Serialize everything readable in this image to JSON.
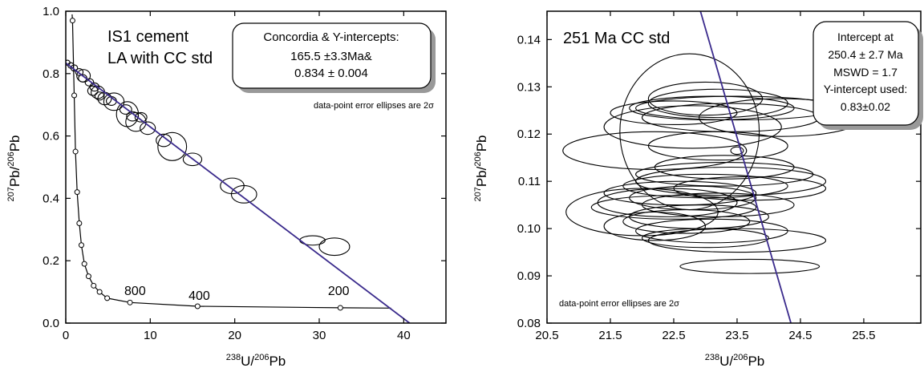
{
  "colors": {
    "axis": "#000000",
    "regression_line": "#3a2a8c",
    "ellipse": "#000000"
  },
  "chart_data": [
    {
      "type": "scatter",
      "subtype": "tera-wasserburg-concordia",
      "title_lines": [
        "IS1 cement",
        "LA with CC std"
      ],
      "xlabel": {
        "sup1": "238",
        "t1": "U/",
        "sup2": "206",
        "t2": "Pb"
      },
      "ylabel": {
        "sup1": "207",
        "t1": "Pb/",
        "sup2": "206",
        "t2": "Pb"
      },
      "xlim": [
        0,
        45
      ],
      "ylim": [
        0,
        1.0
      ],
      "x_ticks": [
        "0",
        "10",
        "20",
        "30",
        "40"
      ],
      "x_tick_values": [
        0,
        10,
        20,
        30,
        40
      ],
      "y_ticks": [
        "0.0",
        "0.2",
        "0.4",
        "0.6",
        "0.8",
        "1.0"
      ],
      "y_tick_values": [
        0,
        0.2,
        0.4,
        0.6,
        0.8,
        1.0
      ],
      "result_box": [
        "Concordia & Y-intercepts:",
        "165.5 ±3.3Ma&",
        "0.834 ± 0.004"
      ],
      "note": "data-point error ellipses are 2σ",
      "regression_line": {
        "x": [
          0,
          40.7
        ],
        "y": [
          0.834,
          0.0
        ]
      },
      "concordia_curve": {
        "x": [
          0.75,
          0.8,
          1.0,
          1.15,
          1.35,
          1.6,
          1.85,
          2.2,
          2.7,
          3.3,
          4.0,
          4.9,
          7.6,
          15.6,
          32.5,
          38.5
        ],
        "y": [
          0.99,
          0.97,
          0.73,
          0.55,
          0.42,
          0.32,
          0.25,
          0.19,
          0.15,
          0.12,
          0.1,
          0.08,
          0.066,
          0.054,
          0.049,
          0.048
        ]
      },
      "concordia_markers": {
        "x": [
          0.8,
          1.0,
          1.15,
          1.35,
          1.6,
          1.85,
          2.2,
          2.7,
          3.3,
          4.0,
          4.9,
          7.6,
          15.6,
          32.5
        ],
        "y": [
          0.97,
          0.73,
          0.55,
          0.42,
          0.32,
          0.25,
          0.19,
          0.15,
          0.12,
          0.1,
          0.08,
          0.066,
          0.054,
          0.049
        ]
      },
      "age_labels": [
        {
          "text": "800",
          "x": 8.2,
          "y": 0.09
        },
        {
          "text": "400",
          "x": 15.8,
          "y": 0.075
        },
        {
          "text": "200",
          "x": 32.3,
          "y": 0.09
        }
      ],
      "data_points": [
        {
          "x": 0.2,
          "y": 0.835,
          "ex": 0.3,
          "ey": 0.008
        },
        {
          "x": 0.6,
          "y": 0.826,
          "ex": 0.35,
          "ey": 0.009
        },
        {
          "x": 1.0,
          "y": 0.818,
          "ex": 0.4,
          "ey": 0.01
        },
        {
          "x": 1.6,
          "y": 0.805,
          "ex": 0.45,
          "ey": 0.011
        },
        {
          "x": 2.1,
          "y": 0.793,
          "ex": 0.8,
          "ey": 0.02
        },
        {
          "x": 2.0,
          "y": 0.785,
          "ex": 0.5,
          "ey": 0.012
        },
        {
          "x": 2.8,
          "y": 0.772,
          "ex": 0.5,
          "ey": 0.012
        },
        {
          "x": 3.4,
          "y": 0.757,
          "ex": 0.55,
          "ey": 0.013
        },
        {
          "x": 3.2,
          "y": 0.745,
          "ex": 0.6,
          "ey": 0.015
        },
        {
          "x": 3.8,
          "y": 0.74,
          "ex": 0.8,
          "ey": 0.02
        },
        {
          "x": 4.0,
          "y": 0.728,
          "ex": 0.55,
          "ey": 0.013
        },
        {
          "x": 4.6,
          "y": 0.72,
          "ex": 0.8,
          "ey": 0.02
        },
        {
          "x": 5.4,
          "y": 0.712,
          "ex": 0.6,
          "ey": 0.014
        },
        {
          "x": 5.7,
          "y": 0.71,
          "ex": 1.2,
          "ey": 0.028
        },
        {
          "x": 7.1,
          "y": 0.685,
          "ex": 0.7,
          "ey": 0.015
        },
        {
          "x": 7.3,
          "y": 0.67,
          "ex": 1.3,
          "ey": 0.04
        },
        {
          "x": 7.9,
          "y": 0.663,
          "ex": 0.7,
          "ey": 0.015
        },
        {
          "x": 8.3,
          "y": 0.645,
          "ex": 1.2,
          "ey": 0.03
        },
        {
          "x": 8.9,
          "y": 0.66,
          "ex": 0.7,
          "ey": 0.015
        },
        {
          "x": 9.7,
          "y": 0.625,
          "ex": 0.9,
          "ey": 0.02
        },
        {
          "x": 11.6,
          "y": 0.586,
          "ex": 0.9,
          "ey": 0.02
        },
        {
          "x": 12.6,
          "y": 0.566,
          "ex": 1.7,
          "ey": 0.045
        },
        {
          "x": 15.0,
          "y": 0.525,
          "ex": 1.1,
          "ey": 0.02
        },
        {
          "x": 19.7,
          "y": 0.44,
          "ex": 1.4,
          "ey": 0.025
        },
        {
          "x": 21.1,
          "y": 0.413,
          "ex": 1.5,
          "ey": 0.028
        },
        {
          "x": 29.2,
          "y": 0.265,
          "ex": 1.5,
          "ey": 0.015
        },
        {
          "x": 31.8,
          "y": 0.245,
          "ex": 1.8,
          "ey": 0.028
        }
      ]
    },
    {
      "type": "scatter",
      "subtype": "tera-wasserburg-concordia",
      "title": "251 Ma CC std",
      "xlabel": {
        "sup1": "238",
        "t1": "U/",
        "sup2": "206",
        "t2": "Pb"
      },
      "ylabel": {
        "sup1": "207",
        "t1": "Pb/",
        "sup2": "206",
        "t2": "Pb"
      },
      "xlim": [
        20.5,
        26.4
      ],
      "ylim": [
        0.08,
        0.146
      ],
      "x_ticks": [
        "20.5",
        "21.5",
        "22.5",
        "23.5",
        "24.5",
        "25.5"
      ],
      "x_tick_values": [
        20.5,
        21.5,
        22.5,
        23.5,
        24.5,
        25.5
      ],
      "y_ticks": [
        "0.08",
        "0.09",
        "0.10",
        "0.11",
        "0.12",
        "0.13",
        "0.14"
      ],
      "y_tick_values": [
        0.08,
        0.09,
        0.1,
        0.11,
        0.12,
        0.13,
        0.14
      ],
      "result_box": [
        "Intercept at",
        "250.4 ± 2.7 Ma",
        "MSWD = 1.7",
        "Y-intercept used:",
        "0.83±0.02"
      ],
      "note": "data-point error ellipses are 2σ",
      "regression_line": {
        "x": [
          22.9,
          24.35
        ],
        "y": [
          0.147,
          0.08
        ]
      },
      "data_points": [
        {
          "x": 23.0,
          "y": 0.1275,
          "ex": 0.9,
          "ey": 0.0035
        },
        {
          "x": 23.2,
          "y": 0.1265,
          "ex": 1.1,
          "ey": 0.003
        },
        {
          "x": 23.1,
          "y": 0.1255,
          "ex": 1.3,
          "ey": 0.0025
        },
        {
          "x": 23.5,
          "y": 0.1255,
          "ex": 1.6,
          "ey": 0.0025
        },
        {
          "x": 22.5,
          "y": 0.1245,
          "ex": 1.0,
          "ey": 0.0025
        },
        {
          "x": 23.4,
          "y": 0.1235,
          "ex": 1.4,
          "ey": 0.003
        },
        {
          "x": 24.2,
          "y": 0.1235,
          "ex": 1.3,
          "ey": 0.004
        },
        {
          "x": 22.8,
          "y": 0.1215,
          "ex": 1.4,
          "ey": 0.0045
        },
        {
          "x": 23.2,
          "y": 0.1175,
          "ex": 1.1,
          "ey": 0.003
        },
        {
          "x": 22.2,
          "y": 0.1165,
          "ex": 1.45,
          "ey": 0.004
        },
        {
          "x": 22.75,
          "y": 0.1205,
          "ex": 1.1,
          "ey": 0.0165
        },
        {
          "x": 23.5,
          "y": 0.1165,
          "ex": 0.1,
          "ey": 0.0008
        },
        {
          "x": 23.3,
          "y": 0.113,
          "ex": 1.1,
          "ey": 0.0025
        },
        {
          "x": 23.3,
          "y": 0.1115,
          "ex": 1.4,
          "ey": 0.0025
        },
        {
          "x": 23.4,
          "y": 0.11,
          "ex": 1.5,
          "ey": 0.003
        },
        {
          "x": 23.0,
          "y": 0.109,
          "ex": 1.3,
          "ey": 0.0025
        },
        {
          "x": 23.7,
          "y": 0.1085,
          "ex": 1.2,
          "ey": 0.0025
        },
        {
          "x": 22.6,
          "y": 0.1075,
          "ex": 1.2,
          "ey": 0.0025
        },
        {
          "x": 22.8,
          "y": 0.1065,
          "ex": 1.0,
          "ey": 0.0025
        },
        {
          "x": 22.4,
          "y": 0.1055,
          "ex": 1.1,
          "ey": 0.003
        },
        {
          "x": 23.2,
          "y": 0.105,
          "ex": 1.2,
          "ey": 0.0025
        },
        {
          "x": 22.5,
          "y": 0.1045,
          "ex": 1.3,
          "ey": 0.0025
        },
        {
          "x": 22.0,
          "y": 0.1035,
          "ex": 1.2,
          "ey": 0.005
        },
        {
          "x": 22.9,
          "y": 0.1025,
          "ex": 1.1,
          "ey": 0.0025
        },
        {
          "x": 22.7,
          "y": 0.1015,
          "ex": 1.0,
          "ey": 0.0025
        },
        {
          "x": 22.2,
          "y": 0.1005,
          "ex": 0.8,
          "ey": 0.003
        },
        {
          "x": 23.1,
          "y": 0.0995,
          "ex": 1.2,
          "ey": 0.0025
        },
        {
          "x": 23.0,
          "y": 0.098,
          "ex": 1.0,
          "ey": 0.002
        },
        {
          "x": 23.5,
          "y": 0.0975,
          "ex": 1.4,
          "ey": 0.0025
        },
        {
          "x": 23.7,
          "y": 0.092,
          "ex": 1.1,
          "ey": 0.0015
        }
      ]
    }
  ]
}
